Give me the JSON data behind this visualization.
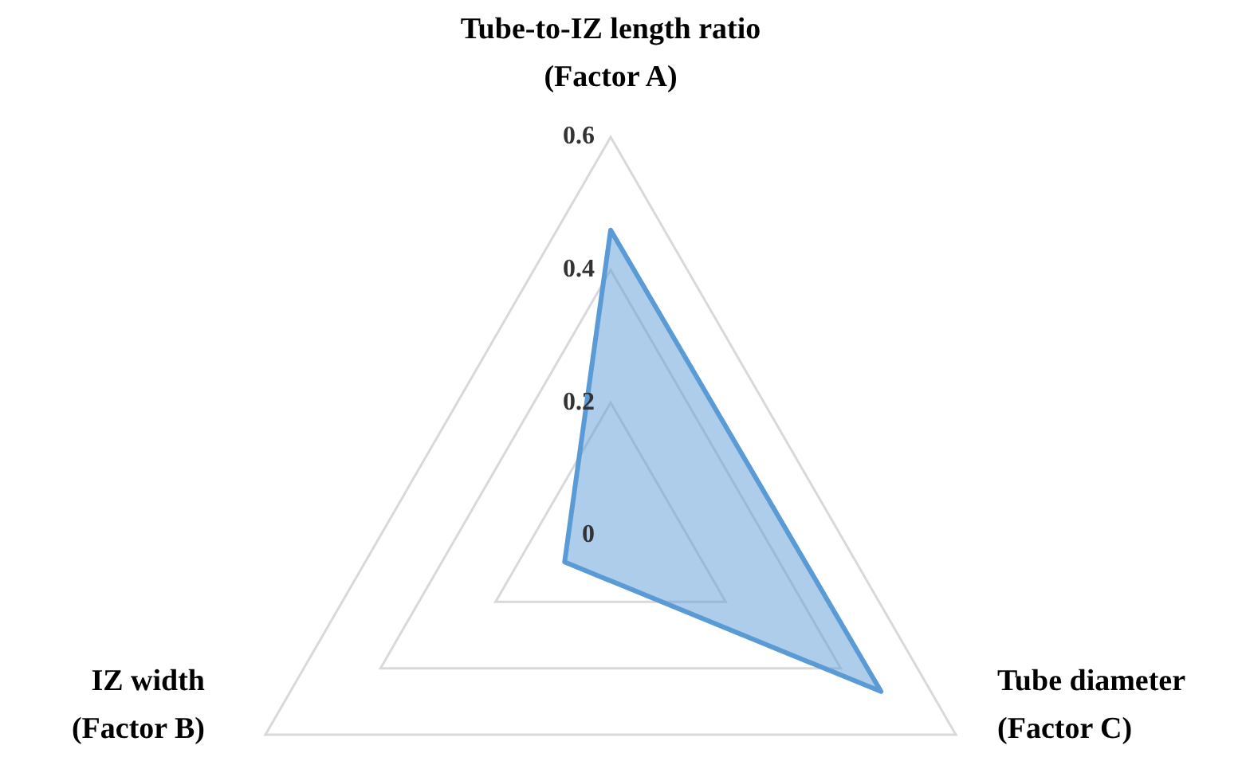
{
  "chart_data": {
    "type": "radar",
    "categories": [
      "Tube-to-IZ length ratio\n(Factor A)",
      "Tube diameter\n(Factor C)",
      "IZ width\n(Factor B)"
    ],
    "series": [
      {
        "color": "#5b9bd5",
        "values": [
          0.46,
          0.47,
          0.08
        ]
      }
    ],
    "ylim": [
      0,
      0.6
    ],
    "yticks": [
      0,
      0.2,
      0.4,
      0.6
    ],
    "grid": true,
    "legend": false,
    "marker": "none",
    "line_style": "solid"
  }
}
